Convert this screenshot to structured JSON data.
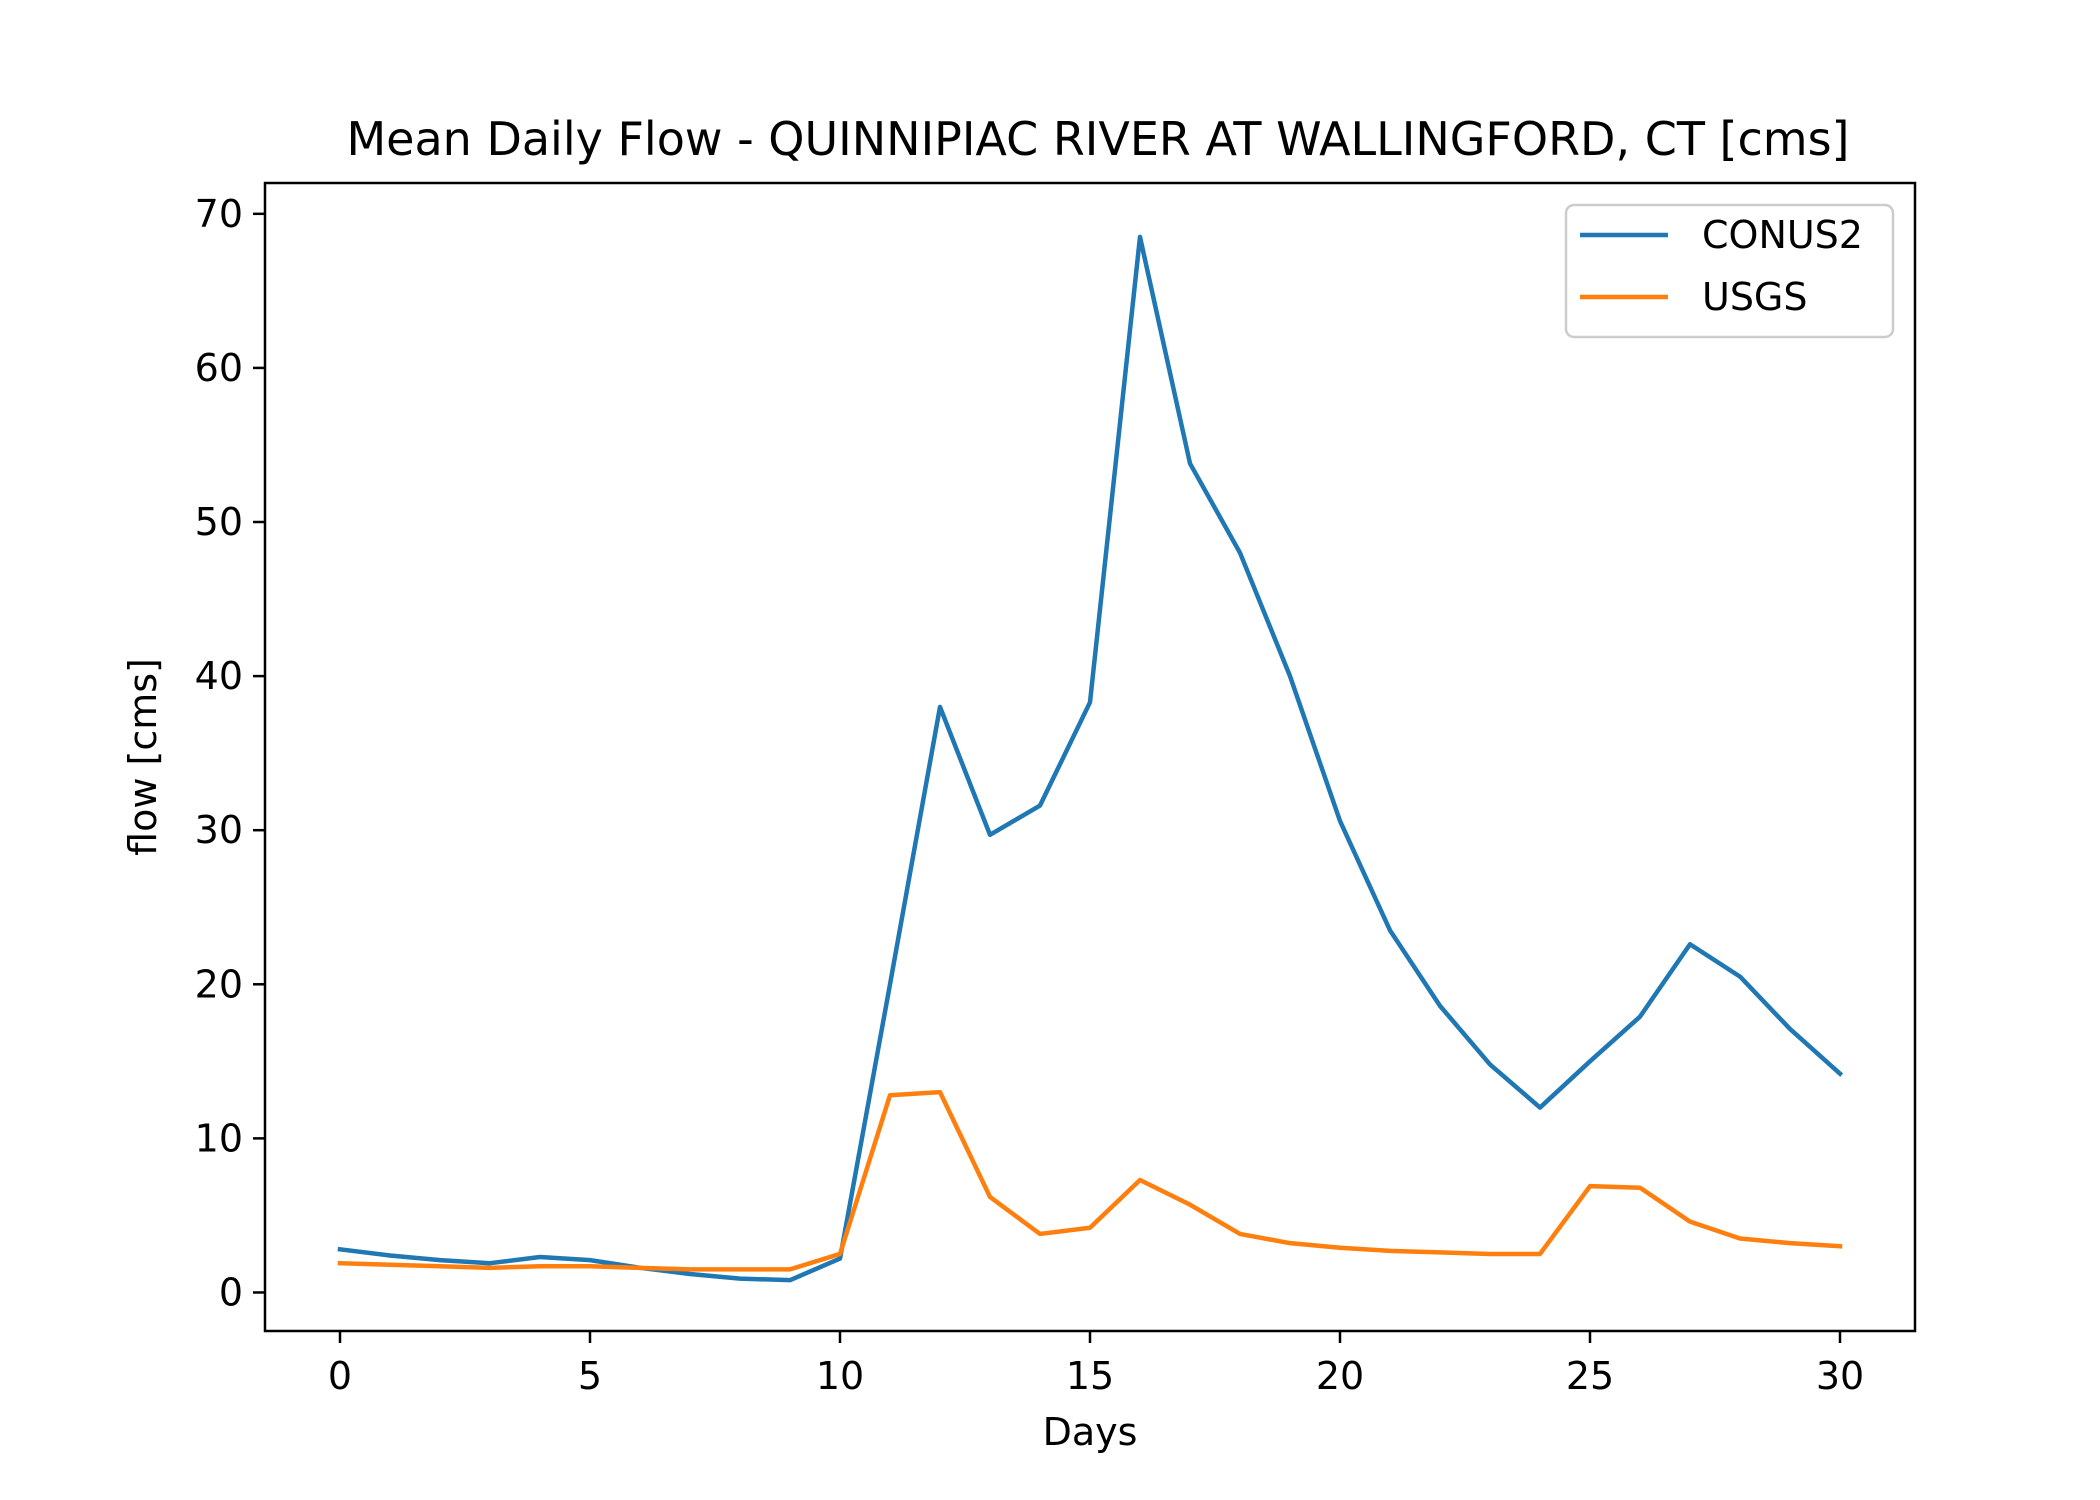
{
  "chart_data": {
    "type": "line",
    "title": "Mean Daily Flow - QUINNIPIAC RIVER AT WALLINGFORD, CT [cms]",
    "xlabel": "Days",
    "ylabel": "flow [cms]",
    "xlim": [
      -1.5,
      31.5
    ],
    "ylim": [
      -2.5,
      72
    ],
    "xticks": [
      0,
      5,
      10,
      15,
      20,
      25,
      30
    ],
    "yticks": [
      0,
      10,
      20,
      30,
      40,
      50,
      60,
      70
    ],
    "grid": false,
    "legend_position": "top-right",
    "x": [
      0,
      1,
      2,
      3,
      4,
      5,
      6,
      7,
      8,
      9,
      10,
      11,
      12,
      13,
      14,
      15,
      16,
      17,
      18,
      19,
      20,
      21,
      22,
      23,
      24,
      25,
      26,
      27,
      28,
      29,
      30
    ],
    "series": [
      {
        "name": "CONUS2",
        "color": "#1f77b4",
        "values": [
          2.8,
          2.4,
          2.1,
          1.9,
          2.3,
          2.1,
          1.6,
          1.2,
          0.9,
          0.8,
          2.2,
          20.0,
          38.0,
          29.7,
          31.6,
          38.3,
          68.5,
          53.8,
          48.0,
          40.0,
          30.6,
          23.5,
          18.6,
          14.8,
          12.0,
          15.0,
          17.9,
          22.6,
          20.5,
          17.1,
          14.2
        ],
        "line_data_names": [
          "conus2-line"
        ],
        "point_data_name": "conus2-point"
      },
      {
        "name": "USGS",
        "color": "#ff7f0e",
        "values": [
          1.9,
          1.8,
          1.7,
          1.6,
          1.7,
          1.7,
          1.6,
          1.5,
          1.5,
          1.5,
          2.5,
          12.8,
          13.0,
          6.2,
          3.8,
          4.2,
          7.3,
          5.7,
          3.8,
          3.2,
          2.9,
          2.7,
          2.6,
          2.5,
          2.5,
          6.9,
          6.8,
          4.6,
          3.5,
          3.2,
          3.0
        ],
        "line_data_names": [
          "usgs-line"
        ],
        "point_data_name": "usgs-point"
      }
    ]
  }
}
